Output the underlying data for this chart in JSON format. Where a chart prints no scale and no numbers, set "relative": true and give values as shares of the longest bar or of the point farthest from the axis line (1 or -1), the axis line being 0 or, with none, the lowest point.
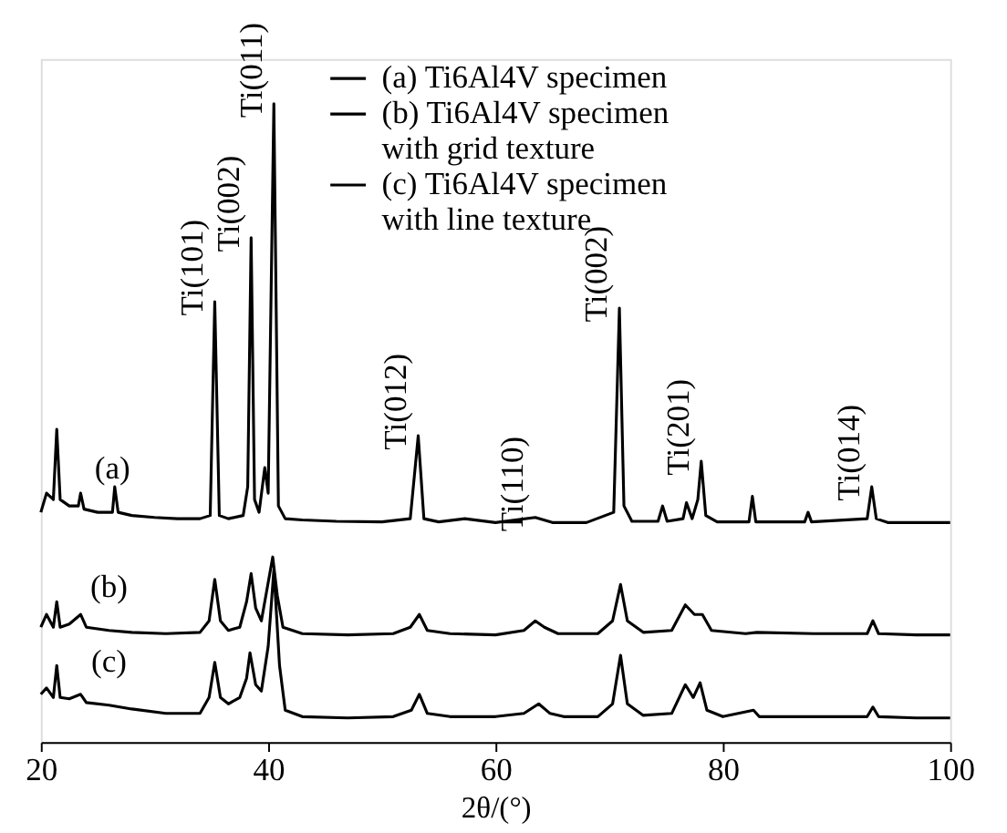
{
  "chart_data": {
    "type": "line",
    "relative": true,
    "xlabel": "2θ/(°)",
    "xlim": [
      20,
      100
    ],
    "xticks": [
      20,
      40,
      60,
      80,
      100
    ],
    "legend": "top right",
    "grid": false,
    "series": [
      {
        "name": "(a) Ti6Al4V specimen",
        "color": "#000000",
        "x": [
          20,
          20.5,
          21.1,
          21.4,
          21.7,
          22.5,
          23.3,
          23.5,
          23.8,
          25,
          26.3,
          26.5,
          26.8,
          28,
          30,
          32,
          34,
          34.9,
          35.3,
          35.7,
          36.5,
          37.8,
          38.2,
          38.5,
          38.8,
          39.2,
          39.7,
          40.0,
          40.5,
          40.9,
          41.5,
          43,
          46,
          50,
          52.5,
          53.2,
          53.7,
          55,
          57.3,
          60,
          63.5,
          65,
          68,
          70.4,
          70.9,
          71.3,
          72,
          74.3,
          74.7,
          75.1,
          76.5,
          76.8,
          77.3,
          77.8,
          78.1,
          78.5,
          79.5,
          82.3,
          82.6,
          82.9,
          87.2,
          87.5,
          87.8,
          92.7,
          93.1,
          93.5,
          94.5,
          97,
          100
        ],
        "values": [
          0.36,
          0.39,
          0.38,
          0.49,
          0.38,
          0.37,
          0.37,
          0.39,
          0.365,
          0.36,
          0.36,
          0.4,
          0.36,
          0.355,
          0.352,
          0.35,
          0.35,
          0.355,
          0.69,
          0.355,
          0.35,
          0.355,
          0.4,
          0.79,
          0.38,
          0.36,
          0.43,
          0.39,
          1.0,
          0.37,
          0.35,
          0.348,
          0.346,
          0.345,
          0.35,
          0.48,
          0.35,
          0.345,
          0.35,
          0.344,
          0.352,
          0.344,
          0.344,
          0.36,
          0.68,
          0.37,
          0.346,
          0.346,
          0.37,
          0.346,
          0.35,
          0.375,
          0.35,
          0.38,
          0.44,
          0.355,
          0.345,
          0.345,
          0.385,
          0.345,
          0.345,
          0.36,
          0.345,
          0.35,
          0.4,
          0.35,
          0.344,
          0.344,
          0.344
        ]
      },
      {
        "name": "(b) Ti6Al4V specimen with grid texture",
        "color": "#000000",
        "x": [
          20,
          20.5,
          21.1,
          21.4,
          21.7,
          22.5,
          23.5,
          24,
          26,
          28,
          31,
          34,
          34.8,
          35.3,
          35.8,
          36.5,
          37.5,
          38.1,
          38.5,
          38.9,
          39.4,
          40.0,
          40.4,
          40.8,
          41.3,
          43,
          47,
          51,
          52.5,
          53.3,
          54,
          56,
          60,
          62.5,
          63.5,
          64.3,
          65.5,
          69,
          70.3,
          71,
          71.6,
          73,
          75.5,
          76.7,
          77.5,
          78.2,
          79,
          82,
          83,
          88,
          92.7,
          93.2,
          93.7,
          97,
          100
        ],
        "values": [
          0.18,
          0.2,
          0.18,
          0.22,
          0.18,
          0.185,
          0.2,
          0.18,
          0.175,
          0.172,
          0.17,
          0.172,
          0.19,
          0.255,
          0.19,
          0.175,
          0.18,
          0.22,
          0.264,
          0.21,
          0.19,
          0.25,
          0.29,
          0.23,
          0.18,
          0.17,
          0.168,
          0.17,
          0.18,
          0.2,
          0.175,
          0.17,
          0.168,
          0.175,
          0.19,
          0.18,
          0.17,
          0.17,
          0.19,
          0.247,
          0.19,
          0.172,
          0.175,
          0.215,
          0.2,
          0.2,
          0.175,
          0.17,
          0.172,
          0.17,
          0.17,
          0.19,
          0.17,
          0.168,
          0.168
        ]
      },
      {
        "name": "(c) Ti6Al4V specimen with line texture",
        "color": "#000000",
        "x": [
          20,
          20.5,
          21.1,
          21.4,
          21.7,
          22.5,
          23.5,
          24,
          26,
          28,
          31,
          34,
          34.8,
          35.3,
          35.8,
          36.5,
          37.5,
          38.1,
          38.4,
          38.9,
          39.4,
          40.0,
          40.5,
          41,
          41.5,
          43,
          47,
          51,
          52.6,
          53.3,
          54,
          56,
          60,
          62.5,
          63.8,
          64.8,
          66,
          69,
          70.3,
          71,
          71.6,
          73,
          75.5,
          76.7,
          77.4,
          78,
          78.6,
          80,
          82.7,
          83.2,
          88,
          92.7,
          93.2,
          93.7,
          97,
          100
        ],
        "values": [
          0.075,
          0.085,
          0.07,
          0.12,
          0.07,
          0.068,
          0.075,
          0.062,
          0.058,
          0.052,
          0.045,
          0.045,
          0.07,
          0.125,
          0.07,
          0.06,
          0.07,
          0.1,
          0.14,
          0.09,
          0.08,
          0.15,
          0.27,
          0.12,
          0.05,
          0.04,
          0.038,
          0.04,
          0.05,
          0.075,
          0.045,
          0.04,
          0.04,
          0.045,
          0.06,
          0.045,
          0.04,
          0.04,
          0.06,
          0.136,
          0.06,
          0.042,
          0.045,
          0.09,
          0.07,
          0.093,
          0.05,
          0.04,
          0.05,
          0.04,
          0.04,
          0.04,
          0.055,
          0.04,
          0.038,
          0.038
        ]
      }
    ],
    "annotations": [
      {
        "text": "Ti(101)",
        "x": 35.3,
        "y": 0.69
      },
      {
        "text": "Ti(002)",
        "x": 38.5,
        "y": 0.79
      },
      {
        "text": "Ti(011)",
        "x": 40.5,
        "y": 1.0
      },
      {
        "text": "Ti(012)",
        "x": 53.2,
        "y": 0.48
      },
      {
        "text": "Ti(110)",
        "x": 63.5,
        "y": 0.352
      },
      {
        "text": "Ti(002)",
        "x": 70.9,
        "y": 0.68
      },
      {
        "text": "Ti(201)",
        "x": 78.1,
        "y": 0.44
      },
      {
        "text": "Ti(014)",
        "x": 93.1,
        "y": 0.4
      },
      {
        "text": "(a)",
        "x": 26.3,
        "y": 0.36
      },
      {
        "text": "(b)",
        "x": 26.0,
        "y": 0.175
      },
      {
        "text": "(c)",
        "x": 26.0,
        "y": 0.058
      }
    ]
  }
}
